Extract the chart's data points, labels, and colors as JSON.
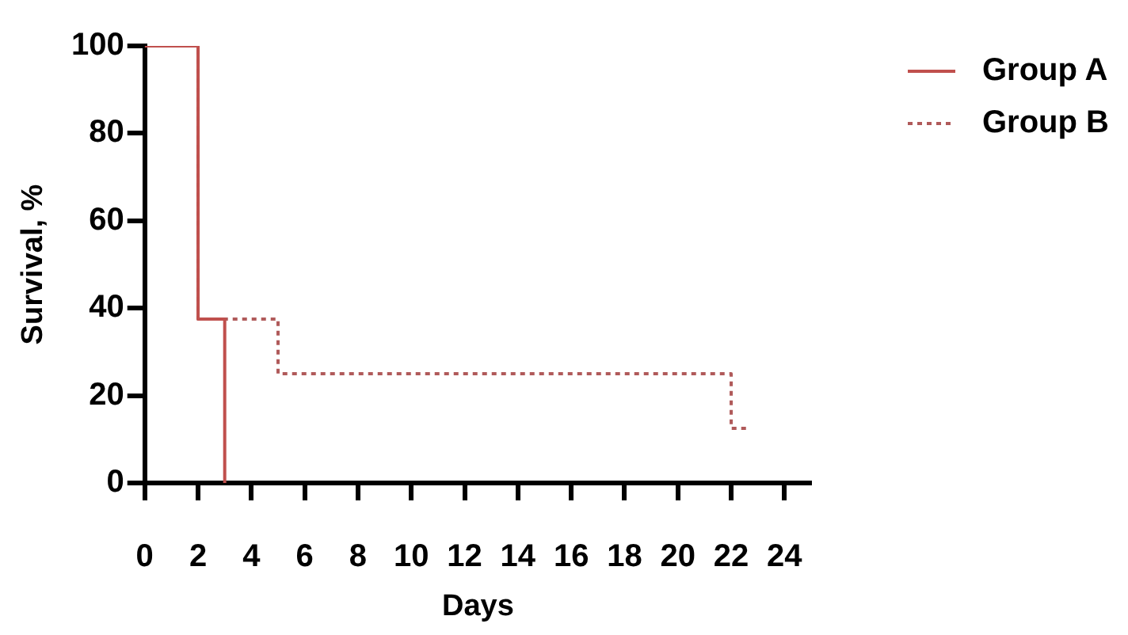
{
  "chart_data": {
    "type": "step",
    "xlabel": "Days",
    "ylabel": "Survival, %",
    "xlim": [
      0,
      25
    ],
    "xticks": [
      0,
      2,
      4,
      6,
      8,
      10,
      12,
      14,
      16,
      18,
      20,
      22,
      24
    ],
    "ylim": [
      0,
      100
    ],
    "yticks": [
      0,
      20,
      40,
      60,
      80,
      100
    ],
    "legend": "top right",
    "marker": "none",
    "series": [
      {
        "name": "Group A",
        "color": "#c0504d",
        "line_style": "solid",
        "x": [
          0,
          2,
          3
        ],
        "values": [
          100,
          37.5,
          0
        ]
      },
      {
        "name": "Group B",
        "color": "#b05a5a",
        "line_style": "dotted",
        "x": [
          0,
          2,
          5,
          22,
          22.7
        ],
        "values": [
          100,
          37.5,
          25,
          12.5,
          12.5
        ]
      }
    ]
  }
}
